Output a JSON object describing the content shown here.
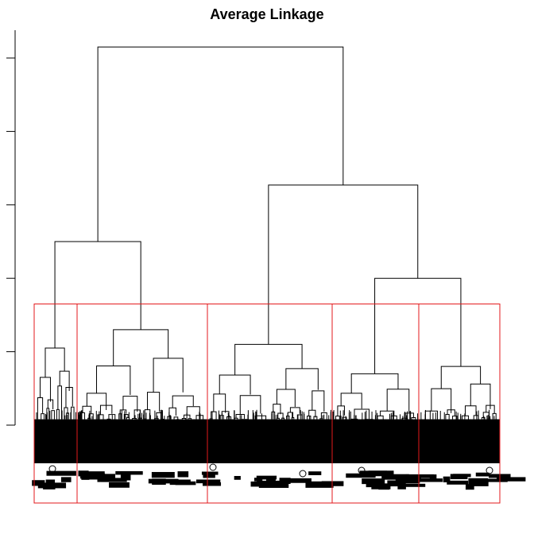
{
  "chart_data": {
    "type": "dendrogram",
    "title": "Average Linkage",
    "xlabel": "",
    "ylabel": "",
    "ylim": [
      0,
      5.3
    ],
    "y_ticks": [
      0,
      1,
      2,
      3,
      4,
      5
    ],
    "tick_labels_shown": false,
    "merges": [
      {
        "id": "root",
        "height": 5.15
      },
      {
        "id": "left-main",
        "height": 2.5
      },
      {
        "id": "right-main",
        "height": 3.27
      },
      {
        "id": "right-sub",
        "height": 2.0
      },
      {
        "id": "cluster-1-head",
        "height": 1.05
      },
      {
        "id": "cluster-2-head",
        "height": 1.3
      },
      {
        "id": "cluster-3-head",
        "height": 1.1
      },
      {
        "id": "cluster-4-head",
        "height": 0.7
      },
      {
        "id": "cluster-5-head",
        "height": 0.8
      }
    ],
    "cut_height": 1.65,
    "n_clusters": 5,
    "cluster_box_color": "#e31a1c",
    "line_color": "#000000"
  }
}
